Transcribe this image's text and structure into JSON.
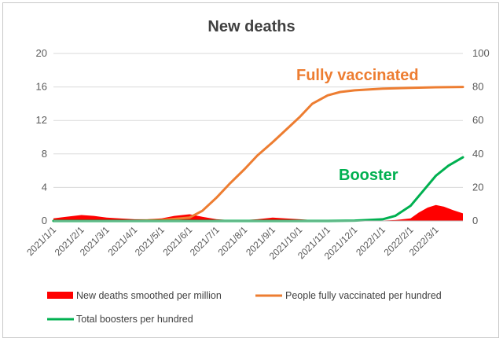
{
  "chart_data": {
    "type": "line",
    "title": "New deaths",
    "x_tick_labels": [
      "2021/1/1",
      "2021/2/1",
      "2021/3/1",
      "2021/4/1",
      "2021/5/1",
      "2021/6/1",
      "2021/7/1",
      "2021/8/1",
      "2021/9/1",
      "2021/10/1",
      "2021/11/1",
      "2021/12/1",
      "2022/1/1",
      "2022/2/1",
      "2022/3/1"
    ],
    "y_left": {
      "ylim": [
        0,
        20
      ],
      "ticks": [
        "0",
        "4",
        "8",
        "12",
        "16",
        "20"
      ]
    },
    "y_right": {
      "ylim": [
        0,
        100
      ],
      "ticks": [
        "0",
        "20",
        "40",
        "60",
        "80",
        "100"
      ]
    },
    "grid": true,
    "legend_position": "bottom",
    "series": [
      {
        "name": "New deaths smoothed per million",
        "kind": "area",
        "axis": "left",
        "color": "#ff0000",
        "x": [
          "2021-01-01",
          "2021-01-15",
          "2021-02-01",
          "2021-02-15",
          "2021-03-01",
          "2021-03-15",
          "2021-04-01",
          "2021-04-15",
          "2021-05-01",
          "2021-05-15",
          "2021-06-01",
          "2021-06-15",
          "2021-07-01",
          "2021-07-15",
          "2021-08-01",
          "2021-08-15",
          "2021-09-01",
          "2021-09-15",
          "2021-10-01",
          "2021-10-15",
          "2021-11-01",
          "2021-11-15",
          "2021-12-01",
          "2021-12-15",
          "2022-01-01",
          "2022-01-15",
          "2022-02-01",
          "2022-02-10",
          "2022-02-20",
          "2022-03-01",
          "2022-03-10",
          "2022-03-20",
          "2022-03-31"
        ],
        "values": [
          0.3,
          0.5,
          0.7,
          0.6,
          0.4,
          0.3,
          0.2,
          0.2,
          0.3,
          0.6,
          0.8,
          0.5,
          0.2,
          0.1,
          0.1,
          0.2,
          0.4,
          0.3,
          0.2,
          0.1,
          0.05,
          0.05,
          0.05,
          0.05,
          0.05,
          0.1,
          0.3,
          1.0,
          1.6,
          1.9,
          1.7,
          1.3,
          0.9
        ]
      },
      {
        "name": "People fully vaccinated per hundred",
        "kind": "line",
        "axis": "right",
        "color": "#ed7d31",
        "label": "Fully vaccinated",
        "x": [
          "2021-01-01",
          "2021-02-01",
          "2021-03-01",
          "2021-04-01",
          "2021-05-01",
          "2021-06-01",
          "2021-06-15",
          "2021-07-01",
          "2021-07-15",
          "2021-08-01",
          "2021-08-15",
          "2021-09-01",
          "2021-09-15",
          "2021-10-01",
          "2021-10-15",
          "2021-11-01",
          "2021-11-15",
          "2021-12-01",
          "2022-01-01",
          "2022-02-01",
          "2022-03-01",
          "2022-03-31"
        ],
        "values": [
          0,
          0,
          0,
          0,
          0.5,
          2,
          6,
          14,
          22,
          31,
          39,
          47,
          54,
          62,
          70,
          75,
          77,
          78,
          79,
          79.5,
          79.8,
          80
        ]
      },
      {
        "name": "Total boosters per hundred",
        "kind": "line",
        "axis": "right",
        "color": "#00b050",
        "label": "Booster",
        "x": [
          "2021-01-01",
          "2021-06-01",
          "2021-11-01",
          "2021-12-01",
          "2021-12-15",
          "2022-01-01",
          "2022-01-15",
          "2022-02-01",
          "2022-02-15",
          "2022-03-01",
          "2022-03-15",
          "2022-03-31"
        ],
        "values": [
          0,
          0,
          0,
          0.2,
          0.5,
          1,
          3,
          9,
          18,
          27,
          33,
          38
        ]
      }
    ]
  }
}
